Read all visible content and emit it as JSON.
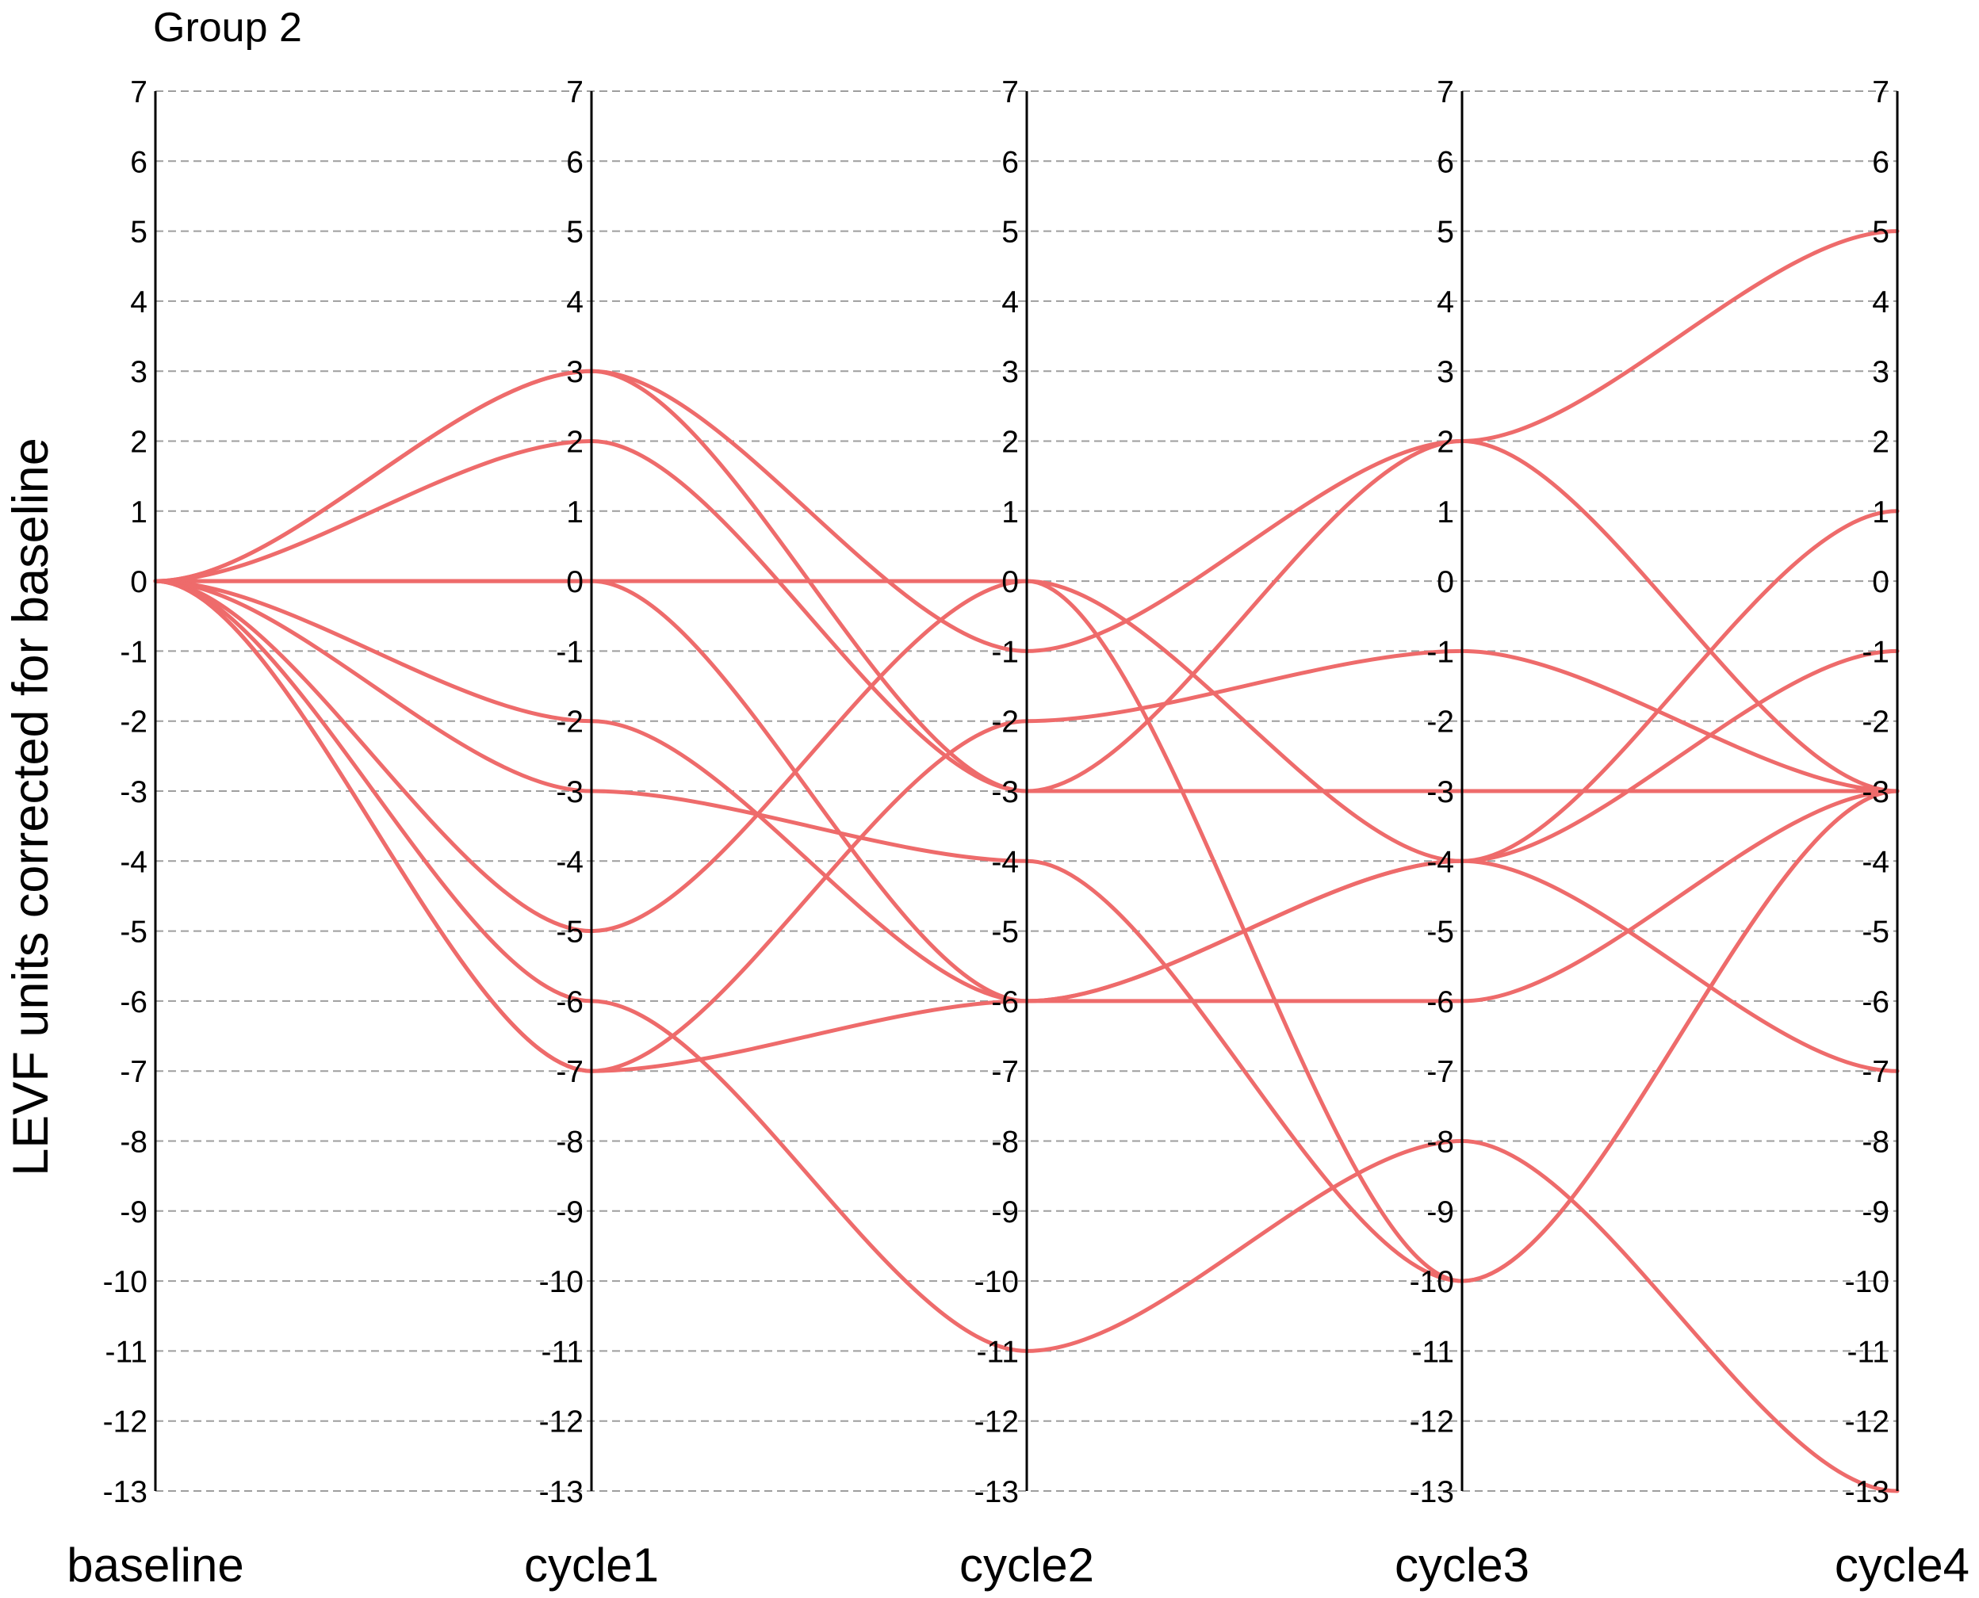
{
  "title": "Group 2",
  "colors": {
    "line": "#EE6B6B",
    "grid": "#9e9e9e",
    "axis": "#000000"
  },
  "chart_data": {
    "type": "line",
    "subtype": "parallel-coordinates",
    "title": "Group 2",
    "ylabel": "LEVF units corrected for baseline",
    "categories": [
      "baseline",
      "cycle1",
      "cycle2",
      "cycle3",
      "cycle4"
    ],
    "ylim": [
      -13,
      7
    ],
    "yticks": [
      7,
      6,
      5,
      4,
      3,
      2,
      1,
      0,
      -1,
      -2,
      -3,
      -4,
      -5,
      -6,
      -7,
      -8,
      -9,
      -10,
      -11,
      -12,
      -13
    ],
    "grid": true,
    "series": [
      {
        "values": [
          0,
          3,
          -1,
          2,
          5
        ]
      },
      {
        "values": [
          0,
          3,
          -3,
          2,
          -3
        ]
      },
      {
        "values": [
          0,
          2,
          -3,
          -3,
          -3
        ]
      },
      {
        "values": [
          0,
          0,
          0,
          -4,
          -7
        ]
      },
      {
        "values": [
          0,
          0,
          -6,
          -6,
          -3
        ]
      },
      {
        "values": [
          0,
          -2,
          -6,
          -4,
          1
        ]
      },
      {
        "values": [
          0,
          -3,
          -4,
          -10,
          -3
        ]
      },
      {
        "values": [
          0,
          -5,
          0,
          -10,
          -3
        ]
      },
      {
        "values": [
          0,
          -6,
          -11,
          -8,
          -13
        ]
      },
      {
        "values": [
          0,
          -7,
          -2,
          -1,
          -3
        ]
      },
      {
        "values": [
          0,
          -7,
          -6,
          -4,
          -1
        ]
      }
    ]
  }
}
